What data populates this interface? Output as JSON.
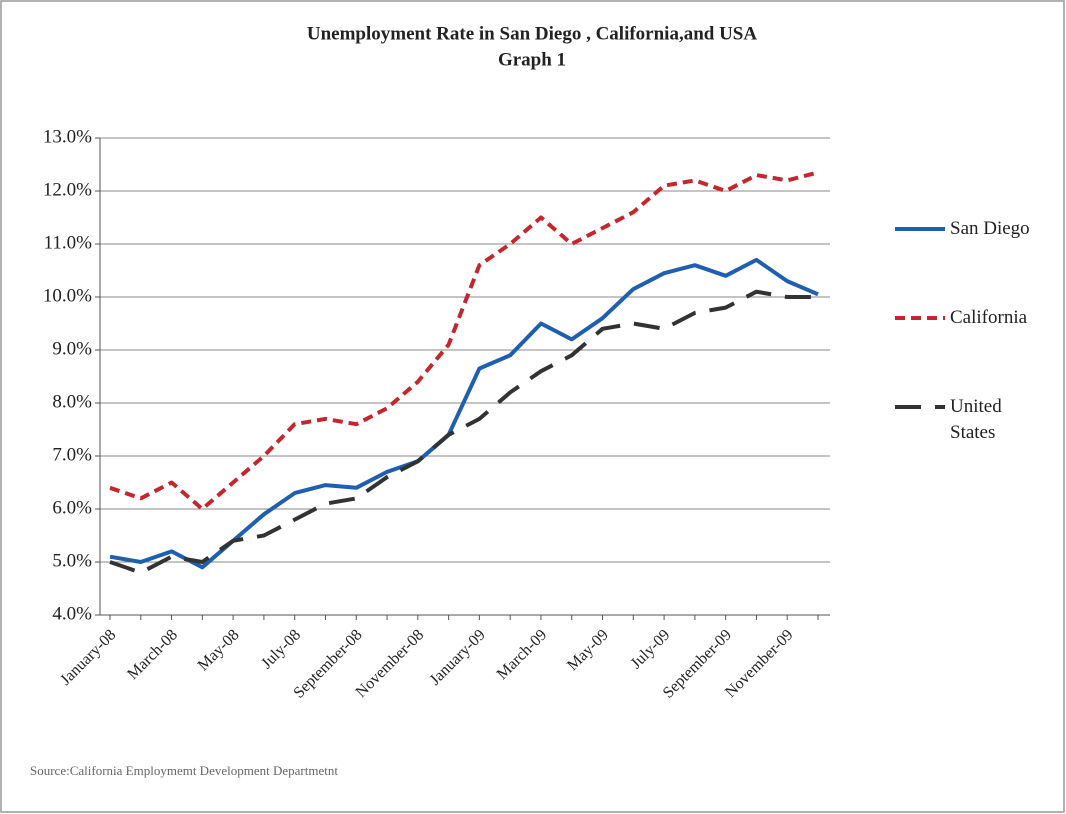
{
  "chart_data": {
    "type": "line",
    "title": "Unemployment Rate in San Diego , California,and USA",
    "subtitle": "Graph 1",
    "source": "Source:California Employmemt Development Departmetnt",
    "categories": [
      "January-08",
      null,
      "March-08",
      null,
      "May-08",
      null,
      "July-08",
      null,
      "September-08",
      null,
      "November-08",
      null,
      "January-09",
      null,
      "March-09",
      null,
      "May-09",
      null,
      "July-09",
      null,
      "September-09",
      null,
      "November-09",
      null
    ],
    "series": [
      {
        "name": "San Diego",
        "color": "#1f5fb0",
        "line_style": "solid",
        "values": [
          5.1,
          5.0,
          5.2,
          4.9,
          5.4,
          5.9,
          6.3,
          6.45,
          6.4,
          6.7,
          6.9,
          7.4,
          8.65,
          8.9,
          9.5,
          9.2,
          9.6,
          10.15,
          10.45,
          10.6,
          10.4,
          10.7,
          10.3,
          10.05
        ]
      },
      {
        "name": "California",
        "color": "#c4262e",
        "line_style": "dashed",
        "values": [
          6.4,
          6.2,
          6.5,
          6.0,
          6.5,
          7.0,
          7.6,
          7.7,
          7.6,
          7.9,
          8.4,
          9.1,
          10.6,
          11.0,
          11.5,
          11.0,
          11.3,
          11.6,
          12.1,
          12.2,
          12.0,
          12.3,
          12.2,
          12.35
        ]
      },
      {
        "name": "United States",
        "color": "#333333",
        "line_style": "long-dashed",
        "values": [
          5.0,
          4.8,
          5.1,
          5.0,
          5.4,
          5.5,
          5.8,
          6.1,
          6.2,
          6.6,
          6.9,
          7.4,
          7.7,
          8.2,
          8.6,
          8.9,
          9.4,
          9.5,
          9.4,
          9.7,
          9.8,
          10.1,
          10.0,
          10.0
        ]
      }
    ],
    "ylim": [
      4,
      13
    ],
    "yticks": [
      {
        "value": 4,
        "label": "4.0%"
      },
      {
        "value": 5,
        "label": "5.0%"
      },
      {
        "value": 6,
        "label": "6.0%"
      },
      {
        "value": 7,
        "label": "7.0%"
      },
      {
        "value": 8,
        "label": "8.0%"
      },
      {
        "value": 9,
        "label": "9.0%"
      },
      {
        "value": 10,
        "label": "10.0%"
      },
      {
        "value": 11,
        "label": "11.0%"
      },
      {
        "value": 12,
        "label": "12.0%"
      },
      {
        "value": 13,
        "label": "13.0%"
      }
    ],
    "grid": true,
    "legend": "right"
  }
}
